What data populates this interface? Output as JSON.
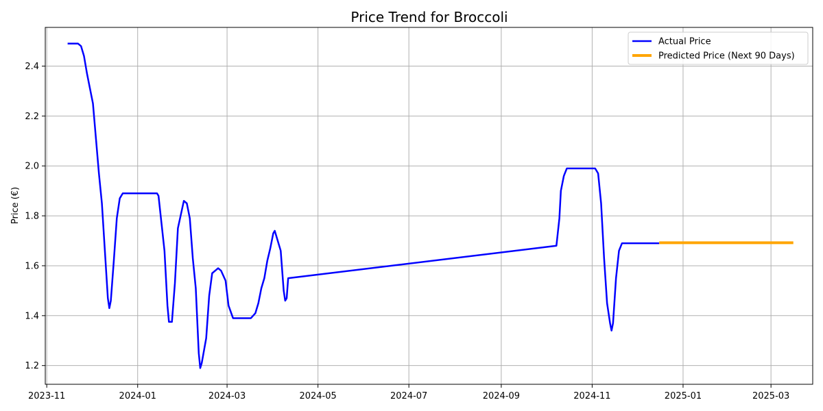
{
  "chart_data": {
    "type": "line",
    "title": "Price Trend for Broccoli",
    "xlabel": "",
    "ylabel": "Price (€)",
    "xlim": [
      "2023-10-31",
      "2025-03-29"
    ],
    "ylim": [
      1.125,
      2.555
    ],
    "x_ticks": [
      "2023-11",
      "2024-01",
      "2024-03",
      "2024-05",
      "2024-07",
      "2024-09",
      "2024-11",
      "2025-01",
      "2025-03"
    ],
    "y_ticks": [
      1.2,
      1.4,
      1.6,
      1.8,
      2.0,
      2.2,
      2.4
    ],
    "grid": true,
    "legend_position": "top-right",
    "series": [
      {
        "name": "Actual Price",
        "color": "#0000ff",
        "points": [
          [
            "2023-11-15",
            2.49
          ],
          [
            "2023-11-22",
            2.49
          ],
          [
            "2023-11-24",
            2.48
          ],
          [
            "2023-11-26",
            2.44
          ],
          [
            "2023-11-28",
            2.37
          ],
          [
            "2023-11-30",
            2.31
          ],
          [
            "2023-12-02",
            2.25
          ],
          [
            "2023-12-04",
            2.11
          ],
          [
            "2023-12-06",
            1.97
          ],
          [
            "2023-12-08",
            1.85
          ],
          [
            "2023-12-10",
            1.66
          ],
          [
            "2023-12-12",
            1.47
          ],
          [
            "2023-12-13",
            1.43
          ],
          [
            "2023-12-14",
            1.46
          ],
          [
            "2023-12-16",
            1.62
          ],
          [
            "2023-12-18",
            1.79
          ],
          [
            "2023-12-20",
            1.87
          ],
          [
            "2023-12-22",
            1.89
          ],
          [
            "2024-01-14",
            1.89
          ],
          [
            "2024-01-15",
            1.88
          ],
          [
            "2024-01-17",
            1.77
          ],
          [
            "2024-01-19",
            1.66
          ],
          [
            "2024-01-21",
            1.44
          ],
          [
            "2024-01-22",
            1.375
          ],
          [
            "2024-01-24",
            1.375
          ],
          [
            "2024-01-26",
            1.53
          ],
          [
            "2024-01-28",
            1.75
          ],
          [
            "2024-02-01",
            1.86
          ],
          [
            "2024-02-03",
            1.85
          ],
          [
            "2024-02-05",
            1.79
          ],
          [
            "2024-02-07",
            1.63
          ],
          [
            "2024-02-09",
            1.51
          ],
          [
            "2024-02-11",
            1.25
          ],
          [
            "2024-02-12",
            1.19
          ],
          [
            "2024-02-13",
            1.21
          ],
          [
            "2024-02-16",
            1.31
          ],
          [
            "2024-02-18",
            1.48
          ],
          [
            "2024-02-20",
            1.57
          ],
          [
            "2024-02-24",
            1.59
          ],
          [
            "2024-02-26",
            1.58
          ],
          [
            "2024-02-29",
            1.54
          ],
          [
            "2024-03-02",
            1.44
          ],
          [
            "2024-03-05",
            1.39
          ],
          [
            "2024-03-10",
            1.39
          ],
          [
            "2024-03-17",
            1.39
          ],
          [
            "2024-03-20",
            1.41
          ],
          [
            "2024-03-22",
            1.45
          ],
          [
            "2024-03-24",
            1.51
          ],
          [
            "2024-03-26",
            1.55
          ],
          [
            "2024-03-28",
            1.62
          ],
          [
            "2024-03-30",
            1.67
          ],
          [
            "2024-04-01",
            1.73
          ],
          [
            "2024-04-02",
            1.74
          ],
          [
            "2024-04-04",
            1.7
          ],
          [
            "2024-04-06",
            1.66
          ],
          [
            "2024-04-08",
            1.5
          ],
          [
            "2024-04-09",
            1.46
          ],
          [
            "2024-04-10",
            1.47
          ],
          [
            "2024-04-11",
            1.55
          ],
          [
            "2024-10-08",
            1.68
          ],
          [
            "2024-10-10",
            1.79
          ],
          [
            "2024-10-11",
            1.9
          ],
          [
            "2024-10-13",
            1.96
          ],
          [
            "2024-10-15",
            1.99
          ],
          [
            "2024-11-03",
            1.99
          ],
          [
            "2024-11-05",
            1.97
          ],
          [
            "2024-11-07",
            1.85
          ],
          [
            "2024-11-09",
            1.63
          ],
          [
            "2024-11-11",
            1.45
          ],
          [
            "2024-11-13",
            1.37
          ],
          [
            "2024-11-14",
            1.34
          ],
          [
            "2024-11-15",
            1.37
          ],
          [
            "2024-11-17",
            1.55
          ],
          [
            "2024-11-19",
            1.66
          ],
          [
            "2024-11-21",
            1.69
          ],
          [
            "2024-11-23",
            1.69
          ],
          [
            "2024-12-16",
            1.69
          ]
        ]
      },
      {
        "name": "Predicted Price (Next 90 Days)",
        "color": "#ffa500",
        "points": [
          [
            "2024-12-16",
            1.692
          ],
          [
            "2025-03-16",
            1.692
          ]
        ]
      }
    ]
  }
}
